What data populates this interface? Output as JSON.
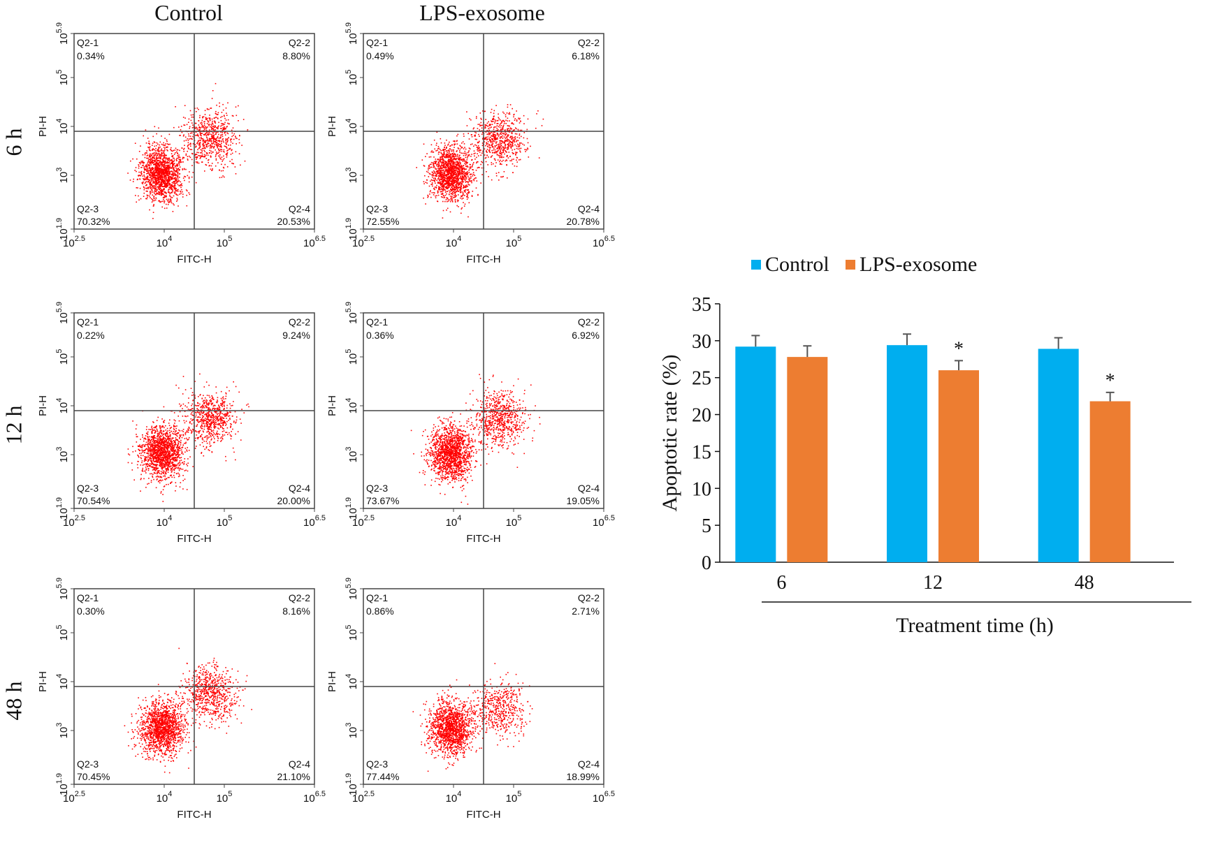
{
  "column_titles": [
    "Control",
    "LPS-exosome"
  ],
  "row_titles": [
    "6 h",
    "12 h",
    "48 h"
  ],
  "flow_axes": {
    "xlabel": "FITC-H",
    "ylabel": "PI-H",
    "x_ticks": [
      {
        "base": "10",
        "exp": "2.5"
      },
      {
        "base": "10",
        "exp": "4"
      },
      {
        "base": "10",
        "exp": "5"
      },
      {
        "base": "10",
        "exp": "6.5"
      }
    ],
    "y_ticks": [
      {
        "base": "10",
        "exp": "1.9"
      },
      {
        "base": "10",
        "exp": "3"
      },
      {
        "base": "10",
        "exp": "4"
      },
      {
        "base": "10",
        "exp": "5"
      },
      {
        "base": "10",
        "exp": "5.9"
      }
    ]
  },
  "panels": [
    {
      "name": "6h-control",
      "q1": "Q2-1",
      "q1v": "0.34%",
      "q2": "Q2-2",
      "q2v": "8.80%",
      "q3": "Q2-3",
      "q3v": "70.32%",
      "q4": "Q2-4",
      "q4v": "20.53%"
    },
    {
      "name": "6h-lps",
      "q1": "Q2-1",
      "q1v": "0.49%",
      "q2": "Q2-2",
      "q2v": "6.18%",
      "q3": "Q2-3",
      "q3v": "72.55%",
      "q4": "Q2-4",
      "q4v": "20.78%"
    },
    {
      "name": "12h-control",
      "q1": "Q2-1",
      "q1v": "0.22%",
      "q2": "Q2-2",
      "q2v": "9.24%",
      "q3": "Q2-3",
      "q3v": "70.54%",
      "q4": "Q2-4",
      "q4v": "20.00%"
    },
    {
      "name": "12h-lps",
      "q1": "Q2-1",
      "q1v": "0.36%",
      "q2": "Q2-2",
      "q2v": "6.92%",
      "q3": "Q2-3",
      "q3v": "73.67%",
      "q4": "Q2-4",
      "q4v": "19.05%"
    },
    {
      "name": "48h-control",
      "q1": "Q2-1",
      "q1v": "0.30%",
      "q2": "Q2-2",
      "q2v": "8.16%",
      "q3": "Q2-3",
      "q3v": "70.45%",
      "q4": "Q2-4",
      "q4v": "21.10%"
    },
    {
      "name": "48h-lps",
      "q1": "Q2-1",
      "q1v": "0.86%",
      "q2": "Q2-2",
      "q2v": "2.71%",
      "q3": "Q2-3",
      "q3v": "77.44%",
      "q4": "Q2-4",
      "q4v": "18.99%"
    }
  ],
  "colors": {
    "control": "#00aeef",
    "lps": "#ed7d31",
    "dots": "#ff0000"
  },
  "chart_data": {
    "type": "bar",
    "categories": [
      "6",
      "12",
      "48"
    ],
    "series": [
      {
        "name": "Control",
        "values": [
          29.2,
          29.4,
          28.9
        ],
        "errors": [
          1.5,
          1.5,
          1.5
        ]
      },
      {
        "name": "LPS-exosome",
        "values": [
          27.8,
          26.0,
          21.8
        ],
        "errors": [
          1.5,
          1.3,
          1.2
        ]
      }
    ],
    "significance": [
      "",
      "*",
      "*"
    ],
    "xlabel": "Treatment time (h)",
    "ylabel": "Apoptotic rate (%)",
    "ylim": [
      0,
      35
    ],
    "yticks": [
      "0",
      "5",
      "10",
      "15",
      "20",
      "25",
      "30",
      "35"
    ],
    "legend_position": "top"
  }
}
